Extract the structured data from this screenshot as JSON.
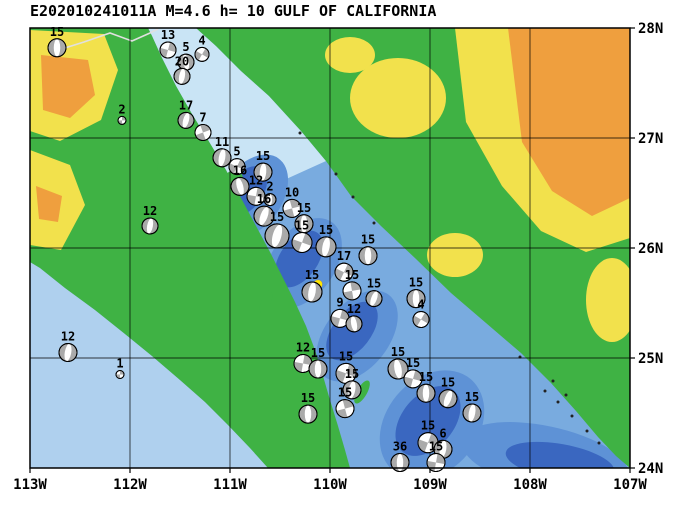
{
  "title": "E202010241011A M=4.6 h= 10 GULF OF CALIFORNIA",
  "axes": {
    "lon_ticks": [
      {
        "label": "113W",
        "lon": -113
      },
      {
        "label": "112W",
        "lon": -112
      },
      {
        "label": "111W",
        "lon": -111
      },
      {
        "label": "110W",
        "lon": -110
      },
      {
        "label": "109W",
        "lon": -109
      },
      {
        "label": "108W",
        "lon": -108
      },
      {
        "label": "107W",
        "lon": -107
      }
    ],
    "lat_ticks": [
      {
        "label": "28N",
        "lat": 28
      },
      {
        "label": "27N",
        "lat": 27
      },
      {
        "label": "26N",
        "lat": 26
      },
      {
        "label": "25N",
        "lat": 25
      },
      {
        "label": "24N",
        "lat": 24
      }
    ]
  },
  "map": {
    "extent": {
      "lon_min": -113,
      "lon_max": -107,
      "lat_min": 24,
      "lat_max": 28
    },
    "colors": {
      "land": "#3FB244",
      "land_high": "#F2E14C",
      "land_highest": "#EF9F3E",
      "ocean": "#79ABDF",
      "ocean_shallow": "#C9E4F5",
      "ocean_deep": "#3A67C0",
      "mechanism_fill": "#AAAAAA",
      "epicenter": "#FFE600"
    },
    "epicenter": {
      "lon": -110.12,
      "lat": 25.67
    },
    "mechanisms": [
      {
        "lon": -112.73,
        "lat": 27.82,
        "depth": "15",
        "r": 9,
        "style": "nf",
        "rot": 0
      },
      {
        "lon": -111.62,
        "lat": 27.8,
        "depth": "13",
        "r": 8,
        "style": "ss",
        "rot": 15
      },
      {
        "lon": -111.44,
        "lat": 27.69,
        "depth": "5",
        "r": 8,
        "style": "nf",
        "rot": -10
      },
      {
        "lon": -111.28,
        "lat": 27.76,
        "depth": "4",
        "r": 7,
        "style": "ss",
        "rot": 30
      },
      {
        "lon": -111.48,
        "lat": 27.56,
        "depth": "20",
        "r": 8,
        "style": "nf",
        "rot": 10
      },
      {
        "lon": -112.08,
        "lat": 27.16,
        "depth": "2",
        "r": 4,
        "style": "ss",
        "rot": 0
      },
      {
        "lon": -111.44,
        "lat": 27.16,
        "depth": "17",
        "r": 8,
        "style": "nf",
        "rot": 15
      },
      {
        "lon": -111.27,
        "lat": 27.05,
        "depth": "7",
        "r": 8,
        "style": "ss",
        "rot": -20
      },
      {
        "lon": -111.08,
        "lat": 26.82,
        "depth": "11",
        "r": 9,
        "style": "nf",
        "rot": 10
      },
      {
        "lon": -110.93,
        "lat": 26.74,
        "depth": "5",
        "r": 8,
        "style": "ss",
        "rot": 25
      },
      {
        "lon": -110.67,
        "lat": 26.69,
        "depth": "15",
        "r": 9,
        "style": "nf",
        "rot": 5
      },
      {
        "lon": -110.9,
        "lat": 26.56,
        "depth": "16",
        "r": 9,
        "style": "nf",
        "rot": -15
      },
      {
        "lon": -110.74,
        "lat": 26.47,
        "depth": "12",
        "r": 9,
        "style": "ss",
        "rot": 10
      },
      {
        "lon": -110.6,
        "lat": 26.44,
        "depth": "2",
        "r": 6,
        "style": "nf",
        "rot": 0
      },
      {
        "lon": -111.8,
        "lat": 26.2,
        "depth": "12",
        "r": 8,
        "style": "nf",
        "rot": 10
      },
      {
        "lon": -110.66,
        "lat": 26.29,
        "depth": "16",
        "r": 10,
        "style": "nf",
        "rot": 20
      },
      {
        "lon": -110.38,
        "lat": 26.36,
        "depth": "10",
        "r": 9,
        "style": "ss",
        "rot": -15
      },
      {
        "lon": -110.53,
        "lat": 26.11,
        "depth": "15",
        "r": 12,
        "style": "nf",
        "rot": 15
      },
      {
        "lon": -110.26,
        "lat": 26.22,
        "depth": "15",
        "r": 9,
        "style": "nf",
        "rot": 0
      },
      {
        "lon": -110.28,
        "lat": 26.05,
        "depth": "15",
        "r": 10,
        "style": "ss",
        "rot": 20
      },
      {
        "lon": -110.04,
        "lat": 26.01,
        "depth": "15",
        "r": 10,
        "style": "nf",
        "rot": 10
      },
      {
        "lon": -109.62,
        "lat": 25.93,
        "depth": "15",
        "r": 9,
        "style": "nf",
        "rot": 0
      },
      {
        "lon": -109.86,
        "lat": 25.78,
        "depth": "17",
        "r": 9,
        "style": "ss",
        "rot": 25
      },
      {
        "lon": -110.18,
        "lat": 25.6,
        "depth": "15",
        "r": 10,
        "style": "nf",
        "rot": 10
      },
      {
        "lon": -109.78,
        "lat": 25.61,
        "depth": "15",
        "r": 9,
        "style": "ss",
        "rot": -10
      },
      {
        "lon": -109.56,
        "lat": 25.54,
        "depth": "15",
        "r": 8,
        "style": "nf",
        "rot": 20
      },
      {
        "lon": -109.14,
        "lat": 25.54,
        "depth": "15",
        "r": 9,
        "style": "nf",
        "rot": 0
      },
      {
        "lon": -109.9,
        "lat": 25.36,
        "depth": "9",
        "r": 9,
        "style": "ss",
        "rot": 15
      },
      {
        "lon": -109.76,
        "lat": 25.31,
        "depth": "12",
        "r": 8,
        "style": "nf",
        "rot": -10
      },
      {
        "lon": -109.09,
        "lat": 25.35,
        "depth": "4",
        "r": 8,
        "style": "ss",
        "rot": 30
      },
      {
        "lon": -112.62,
        "lat": 25.05,
        "depth": "12",
        "r": 9,
        "style": "nf",
        "rot": 10
      },
      {
        "lon": -112.1,
        "lat": 24.85,
        "depth": "1",
        "r": 4,
        "style": "ss",
        "rot": 0
      },
      {
        "lon": -110.27,
        "lat": 24.95,
        "depth": "12",
        "r": 9,
        "style": "ss",
        "rot": 10
      },
      {
        "lon": -110.12,
        "lat": 24.9,
        "depth": "15",
        "r": 9,
        "style": "nf",
        "rot": 0
      },
      {
        "lon": -109.84,
        "lat": 24.86,
        "depth": "15",
        "r": 10,
        "style": "ss",
        "rot": 20
      },
      {
        "lon": -109.78,
        "lat": 24.71,
        "depth": "15",
        "r": 9,
        "style": "nf",
        "rot": 10
      },
      {
        "lon": -109.32,
        "lat": 24.9,
        "depth": "15",
        "r": 10,
        "style": "nf",
        "rot": -10
      },
      {
        "lon": -109.17,
        "lat": 24.81,
        "depth": "15",
        "r": 9,
        "style": "ss",
        "rot": 15
      },
      {
        "lon": -109.04,
        "lat": 24.68,
        "depth": "15",
        "r": 9,
        "style": "nf",
        "rot": 0
      },
      {
        "lon": -108.82,
        "lat": 24.63,
        "depth": "15",
        "r": 9,
        "style": "nf",
        "rot": 20
      },
      {
        "lon": -108.58,
        "lat": 24.5,
        "depth": "15",
        "r": 9,
        "style": "nf",
        "rot": 10
      },
      {
        "lon": -110.22,
        "lat": 24.49,
        "depth": "15",
        "r": 9,
        "style": "nf",
        "rot": 0
      },
      {
        "lon": -109.85,
        "lat": 24.54,
        "depth": "15",
        "r": 9,
        "style": "ss",
        "rot": -15
      },
      {
        "lon": -109.02,
        "lat": 24.23,
        "depth": "15",
        "r": 10,
        "style": "ss",
        "rot": 20
      },
      {
        "lon": -108.87,
        "lat": 24.17,
        "depth": "6",
        "r": 9,
        "style": "nf",
        "rot": 10
      },
      {
        "lon": -109.3,
        "lat": 24.05,
        "depth": "36",
        "r": 9,
        "style": "nf",
        "rot": 0
      },
      {
        "lon": -108.94,
        "lat": 24.05,
        "depth": "15",
        "r": 9,
        "style": "ss",
        "rot": 10
      }
    ]
  }
}
